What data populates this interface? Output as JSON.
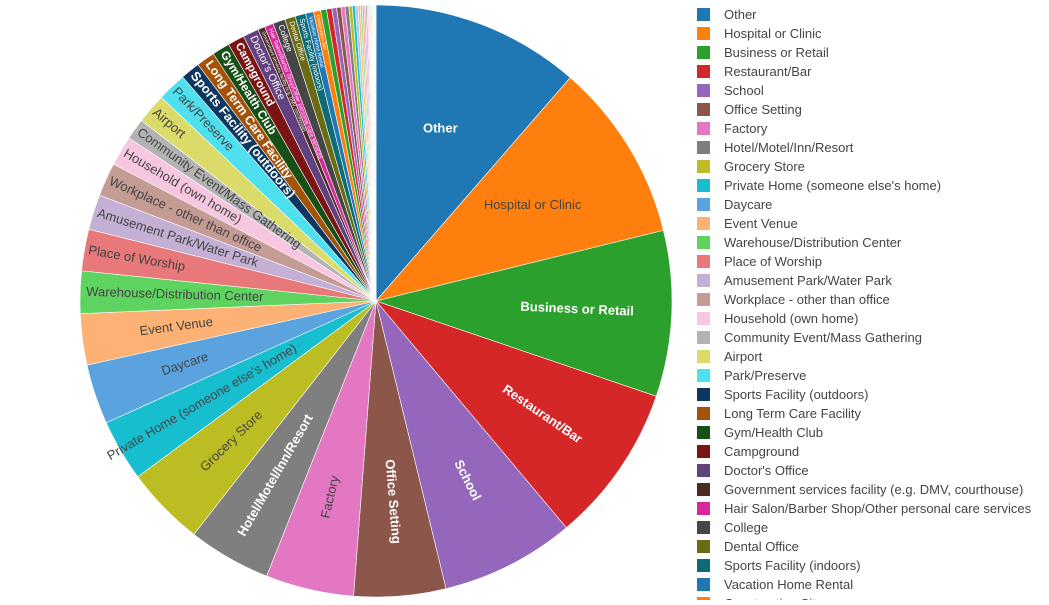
{
  "chart_data": {
    "type": "pie",
    "title": "",
    "direction": "clockwise",
    "start": "12 o'clock",
    "legend": {
      "placement": "right",
      "truncated": true
    },
    "slices": [
      {
        "label": "Other",
        "value": 1183,
        "color": "#1f77b4",
        "text_color": "#ffffff",
        "bold": true
      },
      {
        "label": "Hospital or Clinic",
        "value": 1015,
        "color": "#ff7f0e",
        "text_color": "#444444",
        "bold": false
      },
      {
        "label": "Business or Retail",
        "value": 940,
        "color": "#2ca02c",
        "text_color": "#ffffff",
        "bold": true
      },
      {
        "label": "Restaurant/Bar",
        "value": 900,
        "color": "#d62728",
        "text_color": "#ffffff",
        "bold": true
      },
      {
        "label": "School",
        "value": 760,
        "color": "#9467bd",
        "text_color": "#ffffff",
        "bold": true
      },
      {
        "label": "Office Setting",
        "value": 520,
        "color": "#8c564b",
        "text_color": "#ffffff",
        "bold": true
      },
      {
        "label": "Factory",
        "value": 500,
        "color": "#e377c2",
        "text_color": "#444444",
        "bold": false
      },
      {
        "label": "Hotel/Motel/Inn/Resort",
        "value": 470,
        "color": "#7f7f7f",
        "text_color": "#ffffff",
        "bold": true
      },
      {
        "label": "Grocery Store",
        "value": 450,
        "color": "#bcbd22",
        "text_color": "#444444",
        "bold": false
      },
      {
        "label": "Private Home (someone else's home)",
        "value": 350,
        "color": "#17becf",
        "text_color": "#444444",
        "bold": false
      },
      {
        "label": "Daycare",
        "value": 340,
        "color": "#5aa3de",
        "text_color": "#444444",
        "bold": false
      },
      {
        "label": "Event Venue",
        "value": 290,
        "color": "#fdb174",
        "text_color": "#444444",
        "bold": false
      },
      {
        "label": "Warehouse/Distribution Center",
        "value": 240,
        "color": "#5fd35f",
        "text_color": "#444444",
        "bold": false
      },
      {
        "label": "Place of Worship",
        "value": 235,
        "color": "#e8787a",
        "text_color": "#444444",
        "bold": false
      },
      {
        "label": "Amusement Park/Water Park",
        "value": 200,
        "color": "#c5b0d5",
        "text_color": "#444444",
        "bold": false
      },
      {
        "label": "Workplace - other than office",
        "value": 190,
        "color": "#c49c94",
        "text_color": "#444444",
        "bold": false
      },
      {
        "label": "Household (own home)",
        "value": 170,
        "color": "#f7c6e0",
        "text_color": "#444444",
        "bold": false
      },
      {
        "label": "Community Event/Mass Gathering",
        "value": 120,
        "color": "#b3b3b3",
        "text_color": "#444444",
        "bold": false
      },
      {
        "label": "Airport",
        "value": 170,
        "color": "#dbdb69",
        "text_color": "#444444",
        "bold": false
      },
      {
        "label": "Park/Preserve",
        "value": 165,
        "color": "#4fe0ef",
        "text_color": "#444444",
        "bold": false
      },
      {
        "label": "Sports Facility (outdoors)",
        "value": 110,
        "color": "#0d3760",
        "text_color": "#ffffff",
        "bold": true
      },
      {
        "label": "Long Term Care Facility",
        "value": 105,
        "color": "#a35208",
        "text_color": "#ffffff",
        "bold": true
      },
      {
        "label": "Gym/Health Club",
        "value": 100,
        "color": "#165016",
        "text_color": "#ffffff",
        "bold": true
      },
      {
        "label": "Campground",
        "value": 95,
        "color": "#7b1415",
        "text_color": "#ffffff",
        "bold": true
      },
      {
        "label": "Doctor's Office",
        "value": 90,
        "color": "#62417f",
        "text_color": "#ffffff",
        "bold": false
      },
      {
        "label": "Government services facility (e.g. DMV, courthouse)",
        "value": 40,
        "color": "#4a2c25",
        "text_color": "#ffffff",
        "bold": false
      },
      {
        "label": "Hair Salon/Barber Shop/Other personal care services",
        "value": 50,
        "color": "#d6289a",
        "text_color": "#ffffff",
        "bold": false
      },
      {
        "label": "College",
        "value": 70,
        "color": "#464646",
        "text_color": "#ffffff",
        "bold": false
      },
      {
        "label": "Dental Office",
        "value": 60,
        "color": "#6b6b14",
        "text_color": "#ffffff",
        "bold": false
      },
      {
        "label": "Sports Facility (indoors)",
        "value": 60,
        "color": "#0d6b74",
        "text_color": "#ffffff",
        "bold": false
      },
      {
        "label": "Vacation Home Rental",
        "value": 45,
        "color": "#1f77b4",
        "text_color": "#ffffff",
        "bold": false
      },
      {
        "label": "Construction Site",
        "value": 40,
        "color": "#ff7f0e",
        "text_color": "#ffffff",
        "bold": false
      },
      {
        "label": "",
        "value": 34,
        "color": "#2ca02c",
        "text_color": "#ffffff",
        "bold": false
      },
      {
        "label": "",
        "value": 30,
        "color": "#d62728",
        "text_color": "#ffffff",
        "bold": false
      },
      {
        "label": "",
        "value": 27,
        "color": "#9467bd",
        "text_color": "#ffffff",
        "bold": false
      },
      {
        "label": "",
        "value": 25,
        "color": "#8c564b",
        "text_color": "#ffffff",
        "bold": false
      },
      {
        "label": "",
        "value": 23,
        "color": "#e377c2",
        "text_color": "#ffffff",
        "bold": false
      },
      {
        "label": "",
        "value": 21,
        "color": "#7f7f7f",
        "text_color": "#ffffff",
        "bold": false
      },
      {
        "label": "",
        "value": 19,
        "color": "#bcbd22",
        "text_color": "#ffffff",
        "bold": false
      },
      {
        "label": "",
        "value": 17,
        "color": "#17becf",
        "text_color": "#ffffff",
        "bold": false
      },
      {
        "label": "",
        "value": 15,
        "color": "#aec7e8",
        "text_color": "#ffffff",
        "bold": false
      },
      {
        "label": "",
        "value": 13,
        "color": "#ffbb78",
        "text_color": "#ffffff",
        "bold": false
      },
      {
        "label": "",
        "value": 11,
        "color": "#98df8a",
        "text_color": "#ffffff",
        "bold": false
      },
      {
        "label": "",
        "value": 10,
        "color": "#ff9896",
        "text_color": "#ffffff",
        "bold": false
      },
      {
        "label": "",
        "value": 9,
        "color": "#c5b0d5",
        "text_color": "#ffffff",
        "bold": false
      },
      {
        "label": "",
        "value": 8,
        "color": "#c49c94",
        "text_color": "#ffffff",
        "bold": false
      },
      {
        "label": "",
        "value": 7,
        "color": "#f7b6d2",
        "text_color": "#ffffff",
        "bold": false
      },
      {
        "label": "",
        "value": 6,
        "color": "#c7c7c7",
        "text_color": "#ffffff",
        "bold": false
      },
      {
        "label": "",
        "value": 5,
        "color": "#dbdb8d",
        "text_color": "#ffffff",
        "bold": false
      },
      {
        "label": "",
        "value": 5,
        "color": "#9edae5",
        "text_color": "#ffffff",
        "bold": false
      },
      {
        "label": "",
        "value": 4,
        "color": "#393b79",
        "text_color": "#ffffff",
        "bold": false
      },
      {
        "label": "",
        "value": 4,
        "color": "#637939",
        "text_color": "#ffffff",
        "bold": false
      },
      {
        "label": "",
        "value": 3,
        "color": "#8c6d31",
        "text_color": "#ffffff",
        "bold": false
      },
      {
        "label": "",
        "value": 3,
        "color": "#843c39",
        "text_color": "#ffffff",
        "bold": false
      },
      {
        "label": "",
        "value": 3,
        "color": "#7b4173",
        "text_color": "#ffffff",
        "bold": false
      },
      {
        "label": "",
        "value": 2,
        "color": "#3182bd",
        "text_color": "#ffffff",
        "bold": false
      },
      {
        "label": "",
        "value": 2,
        "color": "#e6550d",
        "text_color": "#ffffff",
        "bold": false
      },
      {
        "label": "",
        "value": 2,
        "color": "#31a354",
        "text_color": "#ffffff",
        "bold": false
      },
      {
        "label": "",
        "value": 2,
        "color": "#756bb1",
        "text_color": "#ffffff",
        "bold": false
      },
      {
        "label": "",
        "value": 1,
        "color": "#636363",
        "text_color": "#ffffff",
        "bold": false
      },
      {
        "label": "",
        "value": 1,
        "color": "#000000",
        "text_color": "#ffffff",
        "bold": false
      }
    ]
  }
}
